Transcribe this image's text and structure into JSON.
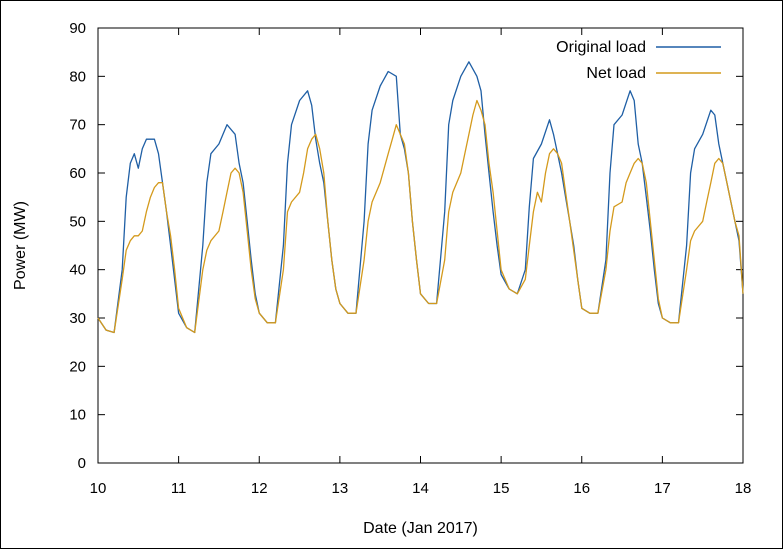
{
  "chart_data": {
    "type": "line",
    "title": "",
    "xlabel": "Date (Jan 2017)",
    "ylabel": "Power (MW)",
    "xlim": [
      10,
      18
    ],
    "ylim": [
      0,
      90
    ],
    "x_ticks": [
      "10",
      "11",
      "12",
      "13",
      "14",
      "15",
      "16",
      "17",
      "18"
    ],
    "y_ticks": [
      "0",
      "10",
      "20",
      "30",
      "40",
      "50",
      "60",
      "70",
      "80",
      "90"
    ],
    "grid": false,
    "legend_position": "top-right",
    "series": [
      {
        "name": "Original load",
        "color": "#1f5fa5",
        "points": [
          [
            10.0,
            30
          ],
          [
            10.1,
            27.5
          ],
          [
            10.2,
            27
          ],
          [
            10.3,
            40
          ],
          [
            10.35,
            55
          ],
          [
            10.4,
            62
          ],
          [
            10.45,
            64
          ],
          [
            10.5,
            61
          ],
          [
            10.55,
            65
          ],
          [
            10.6,
            67
          ],
          [
            10.7,
            67
          ],
          [
            10.75,
            64
          ],
          [
            10.8,
            58
          ],
          [
            10.85,
            52
          ],
          [
            10.9,
            45
          ],
          [
            10.95,
            38
          ],
          [
            11.0,
            31
          ],
          [
            11.1,
            28
          ],
          [
            11.2,
            27
          ],
          [
            11.3,
            45
          ],
          [
            11.35,
            58
          ],
          [
            11.4,
            64
          ],
          [
            11.5,
            66
          ],
          [
            11.6,
            70
          ],
          [
            11.7,
            68
          ],
          [
            11.75,
            62
          ],
          [
            11.8,
            58
          ],
          [
            11.85,
            50
          ],
          [
            11.9,
            42
          ],
          [
            11.95,
            35
          ],
          [
            12.0,
            31
          ],
          [
            12.1,
            29
          ],
          [
            12.2,
            29
          ],
          [
            12.3,
            45
          ],
          [
            12.35,
            62
          ],
          [
            12.4,
            70
          ],
          [
            12.5,
            75
          ],
          [
            12.6,
            77
          ],
          [
            12.65,
            74
          ],
          [
            12.7,
            67
          ],
          [
            12.75,
            62
          ],
          [
            12.8,
            58
          ],
          [
            12.85,
            50
          ],
          [
            12.9,
            42
          ],
          [
            12.95,
            36
          ],
          [
            13.0,
            33
          ],
          [
            13.1,
            31
          ],
          [
            13.2,
            31
          ],
          [
            13.3,
            50
          ],
          [
            13.35,
            66
          ],
          [
            13.4,
            73
          ],
          [
            13.5,
            78
          ],
          [
            13.6,
            81
          ],
          [
            13.7,
            80
          ],
          [
            13.75,
            68
          ],
          [
            13.8,
            65
          ],
          [
            13.85,
            60
          ],
          [
            13.9,
            50
          ],
          [
            13.95,
            42
          ],
          [
            14.0,
            35
          ],
          [
            14.1,
            33
          ],
          [
            14.2,
            33
          ],
          [
            14.3,
            52
          ],
          [
            14.35,
            70
          ],
          [
            14.4,
            75
          ],
          [
            14.5,
            80
          ],
          [
            14.6,
            83
          ],
          [
            14.7,
            80
          ],
          [
            14.75,
            77
          ],
          [
            14.8,
            68
          ],
          [
            14.85,
            60
          ],
          [
            14.9,
            52
          ],
          [
            14.95,
            45
          ],
          [
            15.0,
            39
          ],
          [
            15.1,
            36
          ],
          [
            15.2,
            35
          ],
          [
            15.3,
            40
          ],
          [
            15.35,
            53
          ],
          [
            15.4,
            63
          ],
          [
            15.5,
            66
          ],
          [
            15.6,
            71
          ],
          [
            15.65,
            68
          ],
          [
            15.7,
            64
          ],
          [
            15.75,
            60
          ],
          [
            15.8,
            55
          ],
          [
            15.85,
            50
          ],
          [
            15.9,
            45
          ],
          [
            15.95,
            38
          ],
          [
            16.0,
            32
          ],
          [
            16.1,
            31
          ],
          [
            16.2,
            31
          ],
          [
            16.3,
            42
          ],
          [
            16.35,
            60
          ],
          [
            16.4,
            70
          ],
          [
            16.5,
            72
          ],
          [
            16.6,
            77
          ],
          [
            16.65,
            75
          ],
          [
            16.7,
            66
          ],
          [
            16.75,
            62
          ],
          [
            16.8,
            55
          ],
          [
            16.85,
            48
          ],
          [
            16.9,
            40
          ],
          [
            16.95,
            33
          ],
          [
            17.0,
            30
          ],
          [
            17.1,
            29
          ],
          [
            17.2,
            29
          ],
          [
            17.3,
            45
          ],
          [
            17.35,
            60
          ],
          [
            17.4,
            65
          ],
          [
            17.5,
            68
          ],
          [
            17.6,
            73
          ],
          [
            17.65,
            72
          ],
          [
            17.7,
            66
          ],
          [
            17.75,
            62
          ],
          [
            17.8,
            58
          ],
          [
            17.85,
            54
          ],
          [
            17.9,
            50
          ],
          [
            17.95,
            46
          ],
          [
            18.0,
            35
          ]
        ]
      },
      {
        "name": "Net load",
        "color": "#d49a1c",
        "points": [
          [
            10.0,
            30
          ],
          [
            10.1,
            27.5
          ],
          [
            10.2,
            27
          ],
          [
            10.3,
            38
          ],
          [
            10.35,
            44
          ],
          [
            10.4,
            46
          ],
          [
            10.45,
            47
          ],
          [
            10.5,
            47
          ],
          [
            10.55,
            48
          ],
          [
            10.6,
            52
          ],
          [
            10.65,
            55
          ],
          [
            10.7,
            57
          ],
          [
            10.75,
            58
          ],
          [
            10.8,
            58
          ],
          [
            10.85,
            52
          ],
          [
            10.9,
            47
          ],
          [
            10.95,
            40
          ],
          [
            11.0,
            32
          ],
          [
            11.1,
            28
          ],
          [
            11.2,
            27
          ],
          [
            11.3,
            40
          ],
          [
            11.35,
            44
          ],
          [
            11.4,
            46
          ],
          [
            11.5,
            48
          ],
          [
            11.55,
            52
          ],
          [
            11.6,
            56
          ],
          [
            11.65,
            60
          ],
          [
            11.7,
            61
          ],
          [
            11.75,
            60
          ],
          [
            11.8,
            56
          ],
          [
            11.85,
            48
          ],
          [
            11.9,
            40
          ],
          [
            11.95,
            34
          ],
          [
            12.0,
            31
          ],
          [
            12.1,
            29
          ],
          [
            12.2,
            29
          ],
          [
            12.3,
            40
          ],
          [
            12.35,
            52
          ],
          [
            12.4,
            54
          ],
          [
            12.5,
            56
          ],
          [
            12.55,
            60
          ],
          [
            12.6,
            65
          ],
          [
            12.65,
            67
          ],
          [
            12.7,
            68
          ],
          [
            12.75,
            65
          ],
          [
            12.8,
            60
          ],
          [
            12.85,
            50
          ],
          [
            12.9,
            42
          ],
          [
            12.95,
            36
          ],
          [
            13.0,
            33
          ],
          [
            13.1,
            31
          ],
          [
            13.2,
            31
          ],
          [
            13.3,
            42
          ],
          [
            13.35,
            50
          ],
          [
            13.4,
            54
          ],
          [
            13.5,
            58
          ],
          [
            13.6,
            64
          ],
          [
            13.65,
            67
          ],
          [
            13.7,
            70
          ],
          [
            13.75,
            68
          ],
          [
            13.8,
            66
          ],
          [
            13.85,
            60
          ],
          [
            13.9,
            50
          ],
          [
            13.95,
            42
          ],
          [
            14.0,
            35
          ],
          [
            14.1,
            33
          ],
          [
            14.2,
            33
          ],
          [
            14.3,
            42
          ],
          [
            14.35,
            52
          ],
          [
            14.4,
            56
          ],
          [
            14.5,
            60
          ],
          [
            14.55,
            64
          ],
          [
            14.6,
            68
          ],
          [
            14.65,
            72
          ],
          [
            14.7,
            75
          ],
          [
            14.75,
            73
          ],
          [
            14.8,
            70
          ],
          [
            14.85,
            62
          ],
          [
            14.9,
            56
          ],
          [
            14.95,
            48
          ],
          [
            15.0,
            40
          ],
          [
            15.1,
            36
          ],
          [
            15.2,
            35
          ],
          [
            15.3,
            38
          ],
          [
            15.35,
            45
          ],
          [
            15.4,
            52
          ],
          [
            15.45,
            56
          ],
          [
            15.5,
            54
          ],
          [
            15.55,
            60
          ],
          [
            15.6,
            64
          ],
          [
            15.65,
            65
          ],
          [
            15.7,
            64
          ],
          [
            15.75,
            62
          ],
          [
            15.8,
            56
          ],
          [
            15.85,
            50
          ],
          [
            15.9,
            44
          ],
          [
            15.95,
            38
          ],
          [
            16.0,
            32
          ],
          [
            16.1,
            31
          ],
          [
            16.2,
            31
          ],
          [
            16.3,
            40
          ],
          [
            16.35,
            48
          ],
          [
            16.4,
            53
          ],
          [
            16.5,
            54
          ],
          [
            16.55,
            58
          ],
          [
            16.6,
            60
          ],
          [
            16.65,
            62
          ],
          [
            16.7,
            63
          ],
          [
            16.75,
            62
          ],
          [
            16.8,
            58
          ],
          [
            16.85,
            50
          ],
          [
            16.9,
            42
          ],
          [
            16.95,
            34
          ],
          [
            17.0,
            30
          ],
          [
            17.1,
            29
          ],
          [
            17.2,
            29
          ],
          [
            17.3,
            40
          ],
          [
            17.35,
            46
          ],
          [
            17.4,
            48
          ],
          [
            17.5,
            50
          ],
          [
            17.55,
            54
          ],
          [
            17.6,
            58
          ],
          [
            17.65,
            62
          ],
          [
            17.7,
            63
          ],
          [
            17.75,
            62
          ],
          [
            17.8,
            58
          ],
          [
            17.85,
            54
          ],
          [
            17.9,
            50
          ],
          [
            17.95,
            47
          ],
          [
            18.0,
            35
          ]
        ]
      }
    ]
  }
}
